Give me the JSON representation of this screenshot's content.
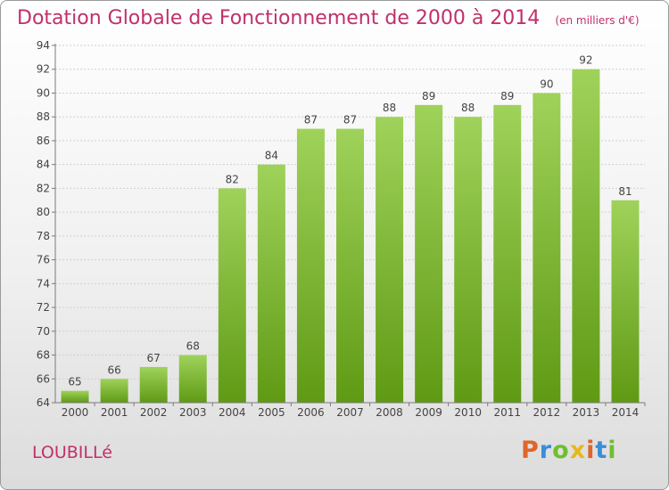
{
  "header": {
    "title": "Dotation Globale de Fonctionnement de 2000 à 2014",
    "subtitle": "(en milliers d'€)"
  },
  "footer": {
    "town": "LOUBILLé",
    "logo": {
      "p": "P",
      "r": "r",
      "o": "o",
      "x": "x",
      "i": "i",
      "t": "t",
      "i2": "i"
    }
  },
  "colors": {
    "title": "#c0306a",
    "bar_top": "#9fd25a",
    "bar_bottom": "#5f9a14",
    "grid": "#d0d0d0",
    "axis": "#7a7a7a",
    "text": "#444444"
  },
  "chart_data": {
    "type": "bar",
    "title": "Dotation Globale de Fonctionnement de 2000 à 2014",
    "subtitle": "(en milliers d'€)",
    "xlabel": "",
    "ylabel": "",
    "categories": [
      "2000",
      "2001",
      "2002",
      "2003",
      "2004",
      "2005",
      "2006",
      "2007",
      "2008",
      "2009",
      "2010",
      "2011",
      "2012",
      "2013",
      "2014"
    ],
    "values": [
      65,
      66,
      67,
      68,
      82,
      84,
      87,
      87,
      88,
      89,
      88,
      89,
      90,
      92,
      81
    ],
    "ylim": [
      64,
      94
    ],
    "yticks": [
      64,
      66,
      68,
      70,
      72,
      74,
      76,
      78,
      80,
      82,
      84,
      86,
      88,
      90,
      92,
      94
    ],
    "grid": true,
    "data_labels": true
  }
}
